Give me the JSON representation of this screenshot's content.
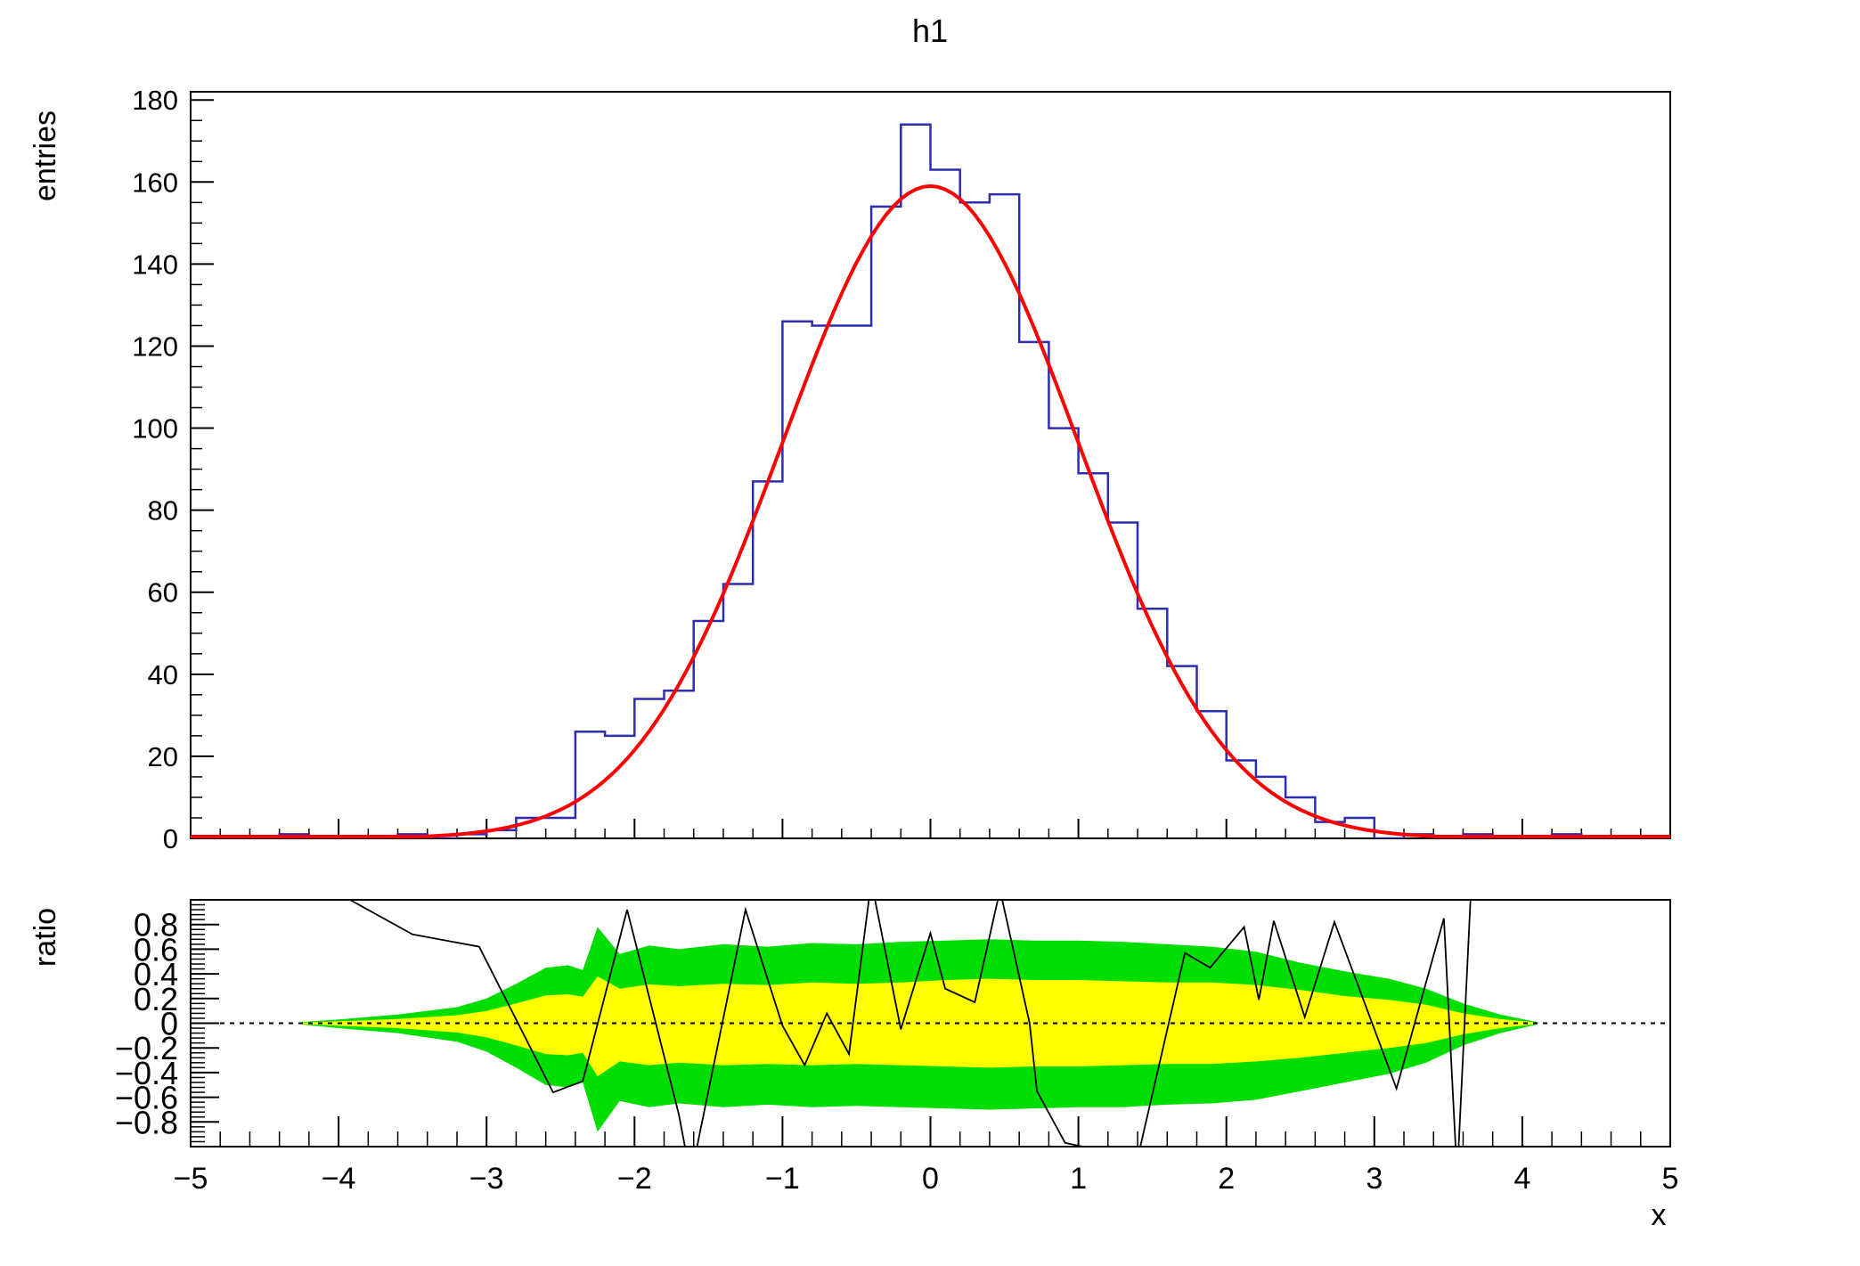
{
  "page": {
    "background": "#ffffff"
  },
  "chart_data": {
    "type": "bar",
    "subtype": "histogram-with-gaussian-fit-and-ratio-panel",
    "title": "h1",
    "xlabel": "x",
    "xlim": [
      -5,
      5
    ],
    "xticks": [
      -5,
      -4,
      -3,
      -2,
      -1,
      0,
      1,
      2,
      3,
      4,
      5
    ],
    "x_minor_step": 0.2,
    "grid": false,
    "legend": "none",
    "top_panel": {
      "ylabel": "entries",
      "ylim": [
        0,
        182
      ],
      "yticks": [
        0,
        20,
        40,
        60,
        80,
        100,
        120,
        140,
        160,
        180
      ],
      "y_minor_step": 5,
      "histogram": {
        "name": "h1",
        "color": "#2d2db0",
        "bin_start": -5,
        "bin_width": 0.2,
        "values": [
          0,
          0,
          0,
          1,
          0,
          0,
          0,
          1,
          0,
          1,
          2,
          5,
          5,
          26,
          25,
          34,
          36,
          53,
          62,
          87,
          126,
          125,
          125,
          154,
          174,
          163,
          155,
          157,
          121,
          100,
          89,
          77,
          56,
          42,
          31,
          19,
          15,
          10,
          4,
          5,
          0,
          1,
          0,
          1,
          0,
          0,
          1,
          0,
          0,
          0
        ]
      },
      "fit_curve": {
        "type": "gaussian",
        "color": "#ff0000",
        "amplitude": 159,
        "mean": 0,
        "sigma": 1.0
      }
    },
    "ratio_panel": {
      "ylabel": "ratio",
      "ylim": [
        -1,
        1
      ],
      "yticks": [
        -0.8,
        -0.6,
        -0.4,
        -0.2,
        0,
        0.2,
        0.4,
        0.6,
        0.8
      ],
      "y_minor_step": 0.04,
      "zero_line_y": 0,
      "band_colors": {
        "outer": "#00dd00",
        "inner": "#ffff00"
      },
      "confidence_bands": {
        "comment": "points are [x, green_hi, yellow_hi, green_lo, yellow_lo] in ratio units",
        "points": [
          [
            -4.25,
            0.01,
            0.005,
            -0.01,
            -0.005
          ],
          [
            -4.0,
            0.03,
            0.015,
            -0.04,
            -0.02
          ],
          [
            -3.6,
            0.07,
            0.035,
            -0.08,
            -0.04
          ],
          [
            -3.2,
            0.13,
            0.065,
            -0.15,
            -0.075
          ],
          [
            -3.0,
            0.2,
            0.1,
            -0.23,
            -0.115
          ],
          [
            -2.8,
            0.32,
            0.16,
            -0.36,
            -0.18
          ],
          [
            -2.6,
            0.45,
            0.225,
            -0.5,
            -0.25
          ],
          [
            -2.45,
            0.47,
            0.235,
            -0.52,
            -0.26
          ],
          [
            -2.35,
            0.43,
            0.215,
            -0.48,
            -0.24
          ],
          [
            -2.25,
            0.78,
            0.38,
            -0.88,
            -0.43
          ],
          [
            -2.1,
            0.56,
            0.28,
            -0.63,
            -0.31
          ],
          [
            -1.9,
            0.63,
            0.315,
            -0.68,
            -0.34
          ],
          [
            -1.7,
            0.6,
            0.3,
            -0.65,
            -0.32
          ],
          [
            -1.4,
            0.64,
            0.32,
            -0.68,
            -0.34
          ],
          [
            -1.1,
            0.62,
            0.31,
            -0.66,
            -0.33
          ],
          [
            -0.8,
            0.65,
            0.33,
            -0.68,
            -0.34
          ],
          [
            -0.5,
            0.64,
            0.32,
            -0.67,
            -0.33
          ],
          [
            -0.2,
            0.66,
            0.33,
            -0.68,
            -0.34
          ],
          [
            0.1,
            0.67,
            0.35,
            -0.69,
            -0.35
          ],
          [
            0.4,
            0.68,
            0.36,
            -0.7,
            -0.36
          ],
          [
            0.7,
            0.67,
            0.35,
            -0.69,
            -0.35
          ],
          [
            1.0,
            0.67,
            0.35,
            -0.68,
            -0.35
          ],
          [
            1.3,
            0.66,
            0.34,
            -0.68,
            -0.34
          ],
          [
            1.6,
            0.64,
            0.33,
            -0.66,
            -0.33
          ],
          [
            1.9,
            0.62,
            0.33,
            -0.65,
            -0.33
          ],
          [
            2.2,
            0.58,
            0.31,
            -0.62,
            -0.31
          ],
          [
            2.5,
            0.49,
            0.27,
            -0.55,
            -0.28
          ],
          [
            2.8,
            0.42,
            0.22,
            -0.48,
            -0.24
          ],
          [
            3.1,
            0.36,
            0.19,
            -0.41,
            -0.2
          ],
          [
            3.35,
            0.28,
            0.15,
            -0.32,
            -0.16
          ],
          [
            3.6,
            0.16,
            0.08,
            -0.18,
            -0.09
          ],
          [
            3.85,
            0.07,
            0.035,
            -0.08,
            -0.04
          ],
          [
            4.1,
            0.01,
            0.005,
            -0.01,
            -0.005
          ]
        ]
      },
      "residual_line": {
        "color": "#000000",
        "points": [
          [
            -4.3,
            1.25
          ],
          [
            -3.5,
            0.72
          ],
          [
            -3.05,
            0.62
          ],
          [
            -2.55,
            -0.56
          ],
          [
            -2.35,
            -0.47
          ],
          [
            -2.05,
            0.92
          ],
          [
            -1.7,
            -0.74
          ],
          [
            -1.62,
            -1.25
          ],
          [
            -1.25,
            0.92
          ],
          [
            -1.0,
            -0.02
          ],
          [
            -0.85,
            -0.34
          ],
          [
            -0.7,
            0.08
          ],
          [
            -0.55,
            -0.25
          ],
          [
            -0.4,
            1.15
          ],
          [
            -0.2,
            -0.05
          ],
          [
            0.0,
            0.73
          ],
          [
            0.1,
            0.28
          ],
          [
            0.3,
            0.17
          ],
          [
            0.47,
            1.08
          ],
          [
            0.67,
            0.0
          ],
          [
            0.72,
            -0.55
          ],
          [
            0.91,
            -0.97
          ],
          [
            1.11,
            -1.02
          ],
          [
            1.18,
            -1.25
          ],
          [
            1.38,
            -1.2
          ],
          [
            1.72,
            0.57
          ],
          [
            1.89,
            0.45
          ],
          [
            2.12,
            0.78
          ],
          [
            2.22,
            0.19
          ],
          [
            2.32,
            0.83
          ],
          [
            2.53,
            0.05
          ],
          [
            2.73,
            0.82
          ],
          [
            3.15,
            -0.53
          ],
          [
            3.47,
            0.85
          ],
          [
            3.56,
            -1.25
          ],
          [
            3.66,
            1.25
          ]
        ]
      }
    },
    "frame_color": "#000000",
    "dashed_zero_line": true
  }
}
